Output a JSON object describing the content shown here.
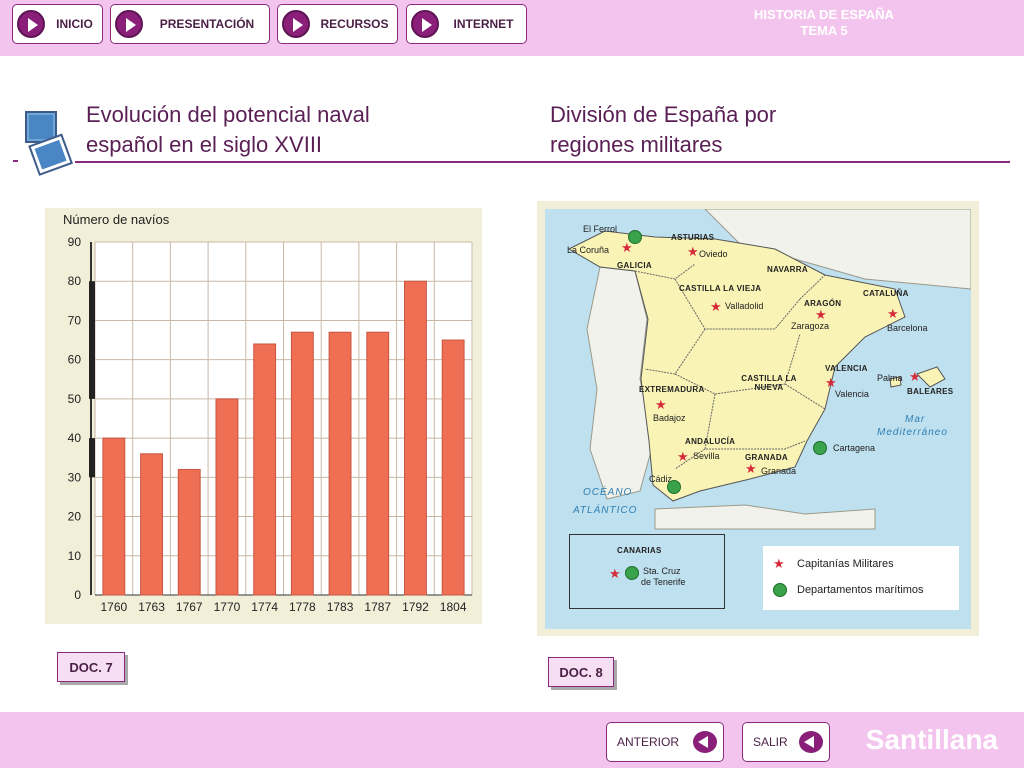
{
  "nav": {
    "items": [
      {
        "label": "INICIO"
      },
      {
        "label": "PRESENTACIÓN"
      },
      {
        "label": "RECURSOS"
      },
      {
        "label": "INTERNET"
      }
    ],
    "title_line1": "HISTORIA DE ESPAÑA",
    "title_line2": "TEMA 5"
  },
  "left": {
    "heading_line1": "Evolución del potencial naval",
    "heading_line2": "español en el siglo XVIII",
    "doc_label": "DOC. 7"
  },
  "right": {
    "heading_line1": "División de España por",
    "heading_line2": "regiones militares",
    "doc_label": "DOC. 8"
  },
  "chart_data": {
    "type": "bar",
    "title": "",
    "ylabel": "Número de navíos",
    "xlabel": "",
    "ylim": [
      0,
      90
    ],
    "yticks": [
      0,
      10,
      20,
      30,
      40,
      50,
      60,
      70,
      80,
      90
    ],
    "categories": [
      "1760",
      "1763",
      "1767",
      "1770",
      "1774",
      "1778",
      "1783",
      "1787",
      "1792",
      "1804"
    ],
    "values": [
      40,
      36,
      32,
      50,
      64,
      67,
      67,
      67,
      80,
      65
    ],
    "grid": true,
    "bar_color": "#ef6f55"
  },
  "map": {
    "regions": [
      "GALICIA",
      "ASTURIAS",
      "NAVARRA",
      "CASTILLA LA VIEJA",
      "ARAGÓN",
      "CATALUÑA",
      "CASTILLA LA NUEVA",
      "EXTREMADURA",
      "VALENCIA",
      "BALEARES",
      "ANDALUCÍA",
      "GRANADA",
      "CANARIAS"
    ],
    "cities": [
      "El Ferrol",
      "La Coruña",
      "Oviedo",
      "Valladolid",
      "Zaragoza",
      "Barcelona",
      "Palma",
      "Valencia",
      "Badajoz",
      "Sevilla",
      "Granada",
      "Cartagena",
      "Cádiz",
      "Sta. Cruz",
      "de Tenerife"
    ],
    "seas": [
      "Mar",
      "Mediterráneo",
      "OCÉANO",
      "ATLÁNTICO"
    ],
    "legend": [
      {
        "label": "Capitanías Militares",
        "icon": "star-icon",
        "color": "#d52b3a"
      },
      {
        "label": "Departamentos marítimos",
        "icon": "green-dot-icon",
        "color": "#3aa24a"
      }
    ]
  },
  "footer": {
    "prev_label": "ANTERIOR",
    "exit_label": "SALIR",
    "brand": "Santillana"
  }
}
